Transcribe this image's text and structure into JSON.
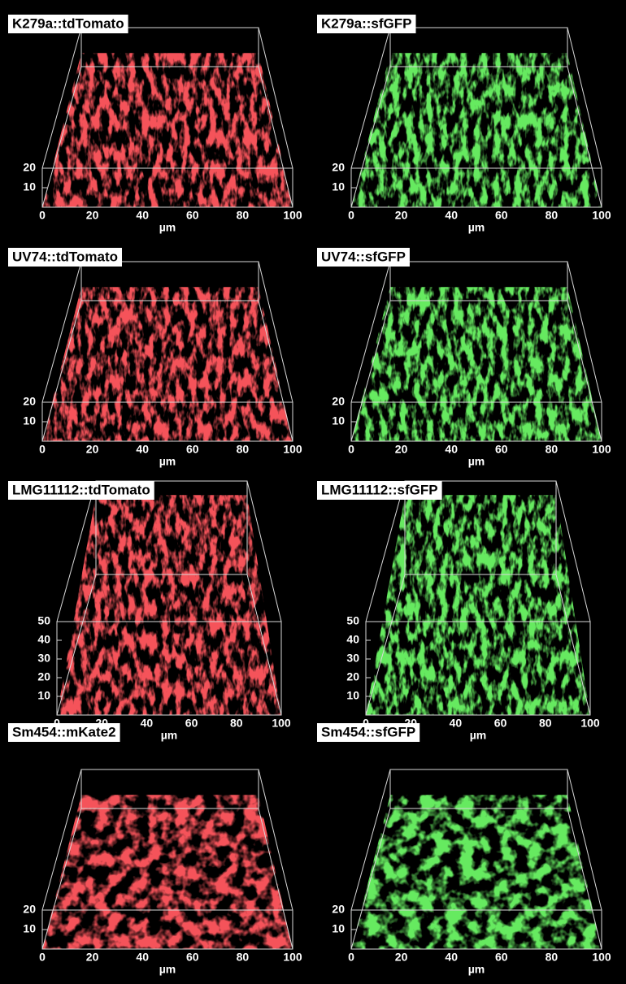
{
  "panels": [
    {
      "label": "K279a::tdTomato",
      "color": "#e8161a",
      "x_ticks": [
        0,
        20,
        40,
        60,
        80,
        100
      ],
      "z_ticks": [
        10,
        20
      ],
      "unit": "µm"
    },
    {
      "label": "K279a::sfGFP",
      "color": "#22d11e",
      "x_ticks": [
        0,
        20,
        40,
        60,
        80,
        100
      ],
      "z_ticks": [
        10,
        20
      ],
      "unit": "µm"
    },
    {
      "label": "UV74::tdTomato",
      "color": "#e8161a",
      "x_ticks": [
        0,
        20,
        40,
        60,
        80,
        100
      ],
      "z_ticks": [
        10,
        20
      ],
      "unit": "µm"
    },
    {
      "label": "UV74::sfGFP",
      "color": "#22d11e",
      "x_ticks": [
        0,
        20,
        40,
        60,
        80,
        100
      ],
      "z_ticks": [
        10,
        20
      ],
      "unit": "µm"
    },
    {
      "label": "LMG11112::tdTomato",
      "color": "#e8161a",
      "x_ticks": [
        0,
        20,
        40,
        60,
        80,
        100
      ],
      "z_ticks": [
        10,
        20,
        30,
        40,
        50
      ],
      "unit": "µm"
    },
    {
      "label": "LMG11112::sfGFP",
      "color": "#22d11e",
      "x_ticks": [
        0,
        20,
        40,
        60,
        80,
        100
      ],
      "z_ticks": [
        10,
        20,
        30,
        40,
        50
      ],
      "unit": "µm"
    },
    {
      "label": "Sm454::mKate2",
      "color": "#e8161a",
      "x_ticks": [
        0,
        20,
        40,
        60,
        80,
        100
      ],
      "z_ticks": [
        10,
        20
      ],
      "unit": "µm"
    },
    {
      "label": "Sm454::sfGFP",
      "color": "#22d11e",
      "x_ticks": [
        0,
        20,
        40,
        60,
        80,
        100
      ],
      "z_ticks": [
        10,
        20
      ],
      "unit": "µm"
    }
  ]
}
